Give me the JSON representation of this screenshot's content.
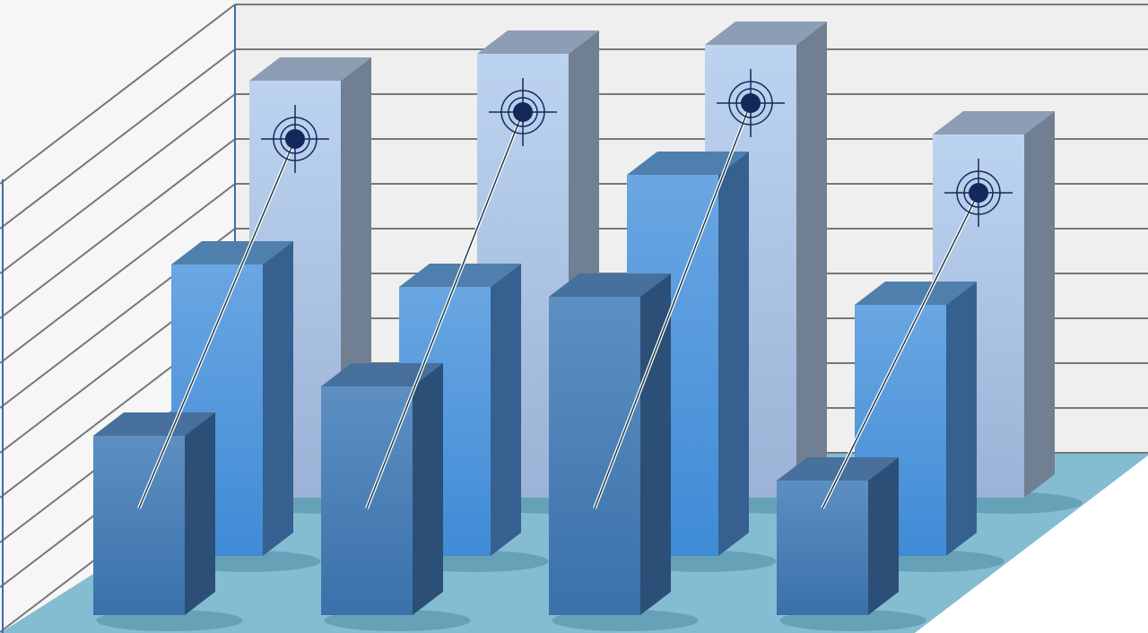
{
  "chart_data": {
    "type": "bar",
    "style": "3d-grouped-rows",
    "title": "",
    "xlabel": "",
    "ylabel": "",
    "categories": [
      "",
      "",
      "",
      ""
    ],
    "grid": true,
    "ylim": [
      0,
      11
    ],
    "series": [
      {
        "values": [
          9.3,
          9.9,
          10.1,
          8.1
        ],
        "color": "#b4cdec",
        "marker": "target"
      },
      {
        "values": [
          6.5,
          6.0,
          8.5,
          5.6
        ],
        "color": "#5b9ddf"
      },
      {
        "values": [
          4.0,
          5.1,
          7.1,
          3.0
        ],
        "color": "#4a7fb5"
      }
    ],
    "colors": {
      "wall": "#efefef",
      "grid": "#777777",
      "floor": "#84bcd2",
      "axis": "#3a6ea5",
      "target": "#14285a"
    }
  }
}
